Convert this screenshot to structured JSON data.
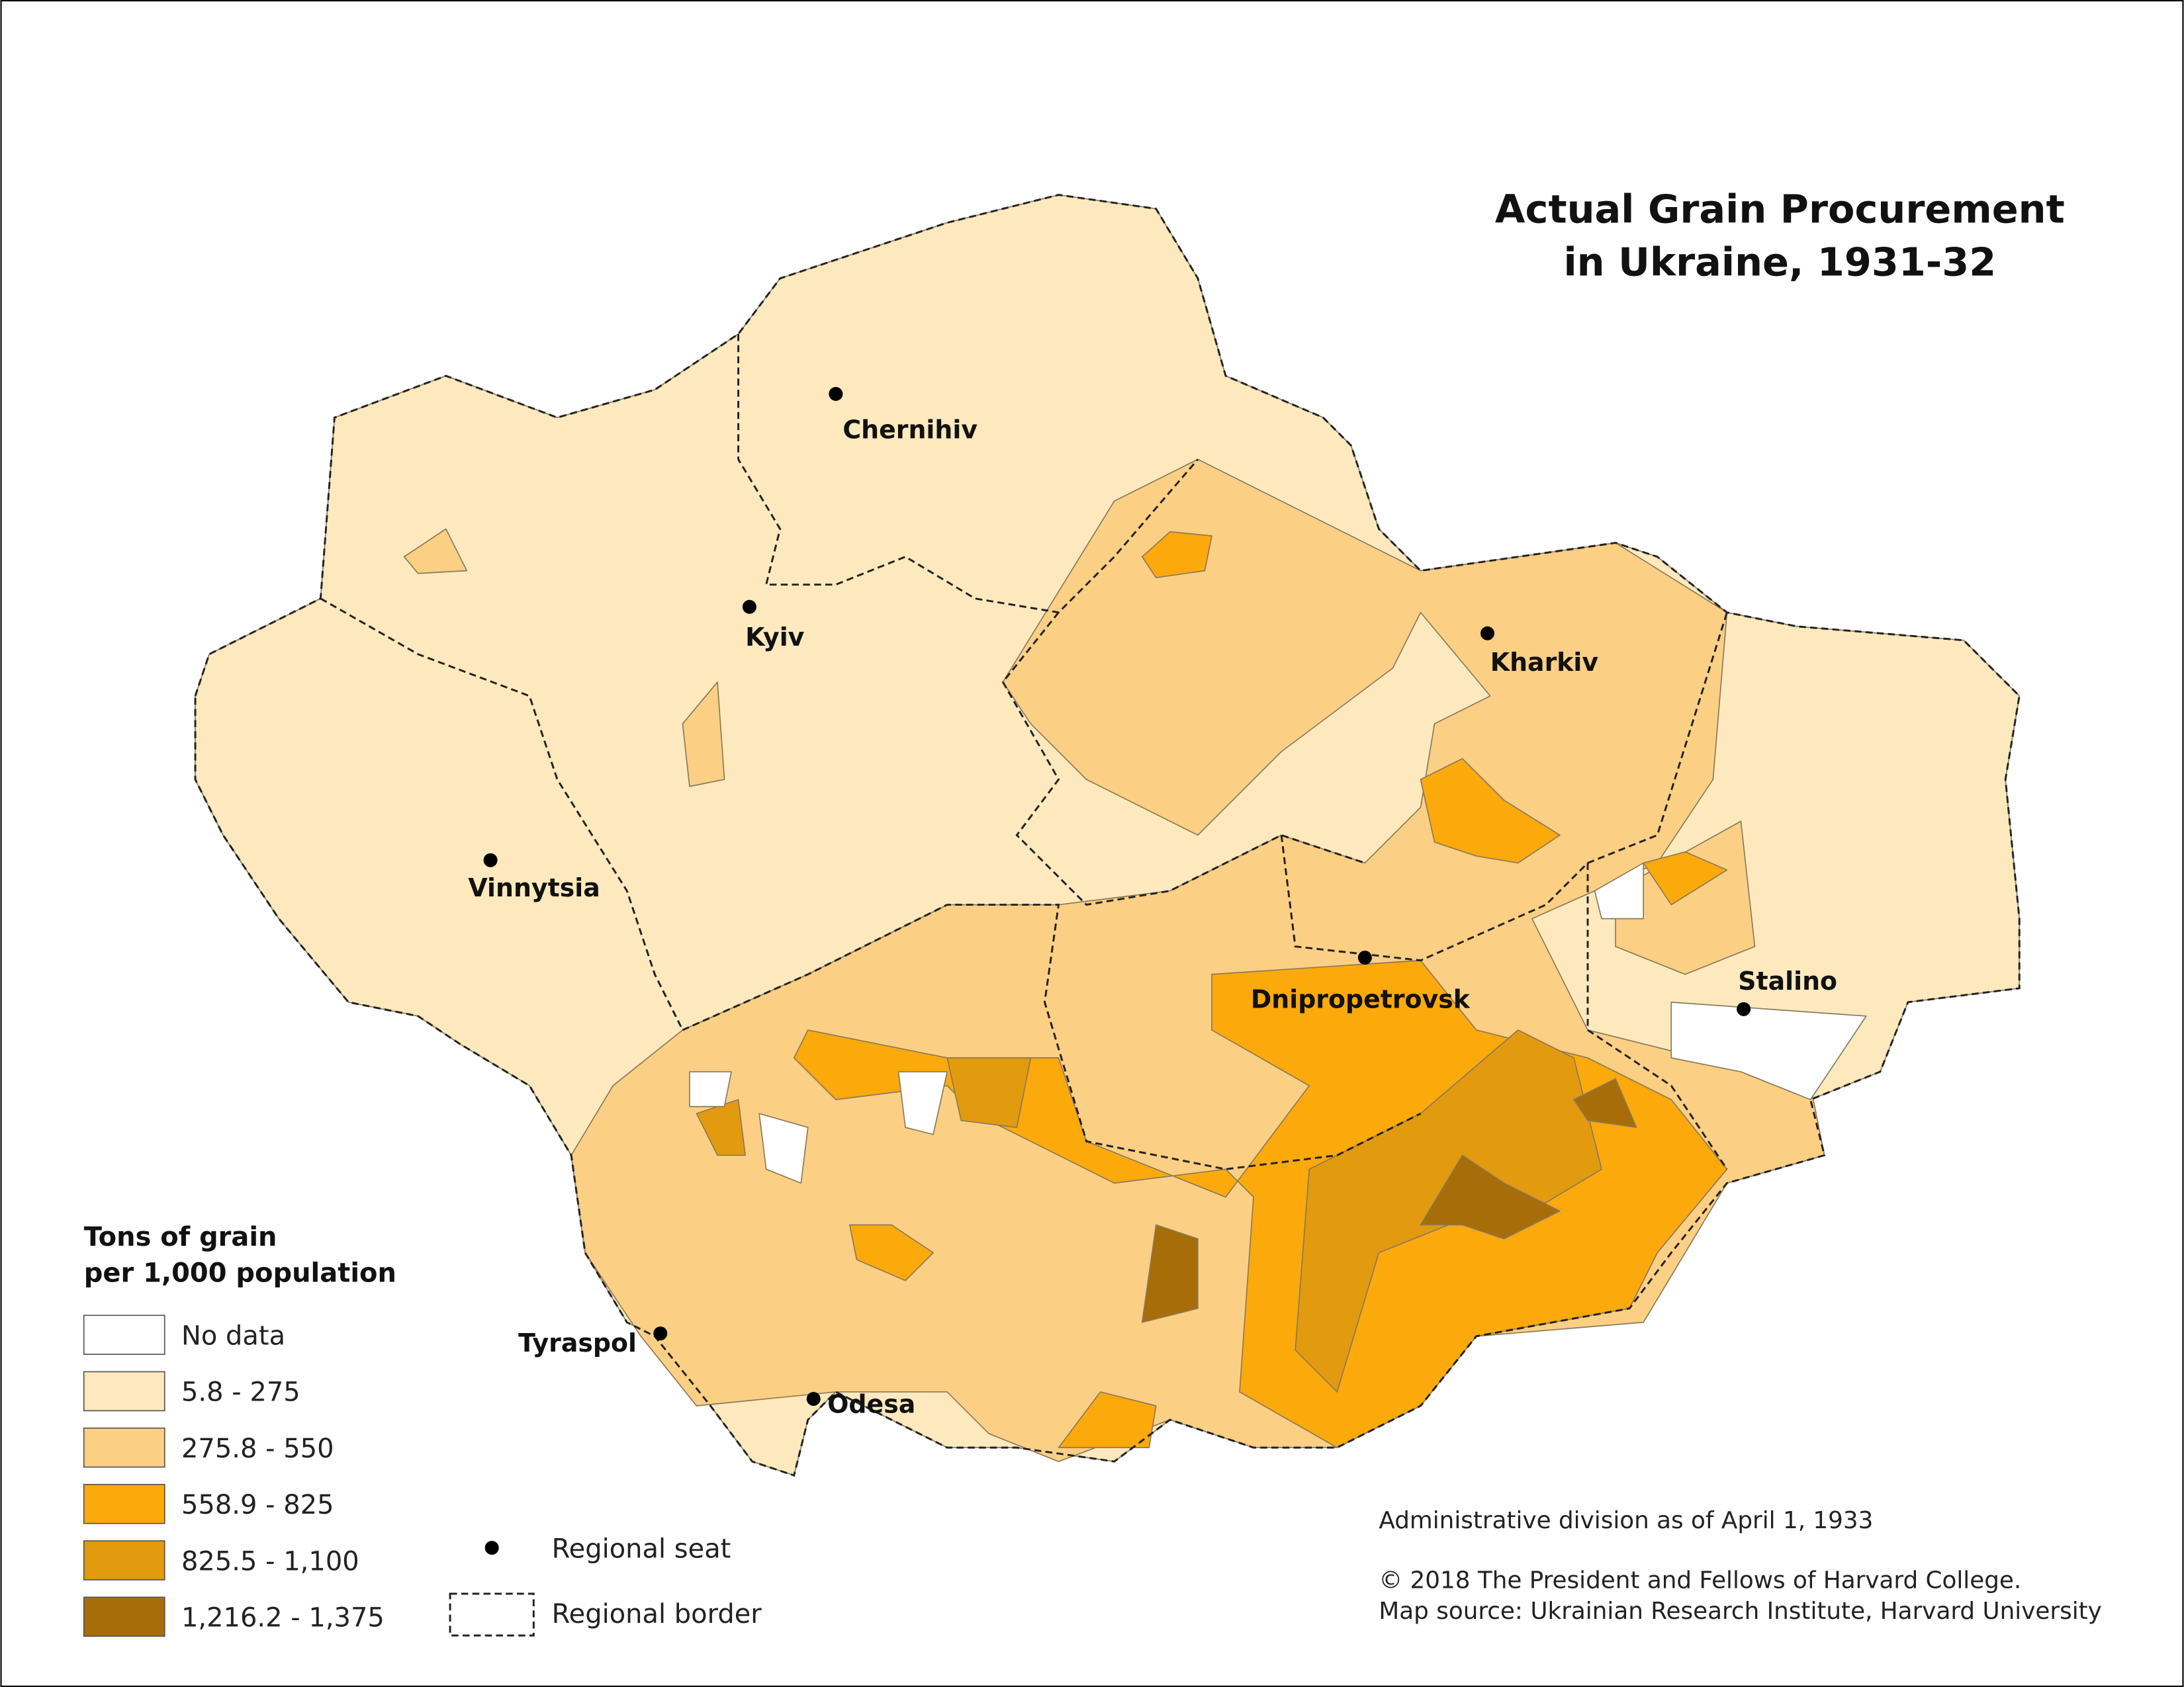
{
  "title": [
    "Actual Grain Procurement",
    "in Ukraine, 1931-32"
  ],
  "legend": {
    "title": [
      "Tons of grain",
      "per 1,000 population"
    ],
    "items": [
      {
        "label": "No data",
        "color": "#ffffff"
      },
      {
        "label": "5.8 - 275",
        "color": "#fde9bd"
      },
      {
        "label": "275.8 - 550",
        "color": "#fbcf84"
      },
      {
        "label": "558.9 - 825",
        "color": "#fca90c"
      },
      {
        "label": "825.5 - 1,100",
        "color": "#e29a0e"
      },
      {
        "label": "1,216.2 - 1,375",
        "color": "#a76d09"
      }
    ],
    "symbols": [
      "Regional seat",
      "Regional border"
    ]
  },
  "cities": [
    "Chernihiv",
    "Kyiv",
    "Kharkiv",
    "Vinnytsia",
    "Dnipropetrovsk",
    "Stalino",
    "Tyraspol",
    "Odesa"
  ],
  "notes": [
    "Administrative division as of April 1, 1933",
    "© 2018 The President and Fellows of Harvard College.",
    "Map source: Ukrainian Research Institute, Harvard University"
  ]
}
